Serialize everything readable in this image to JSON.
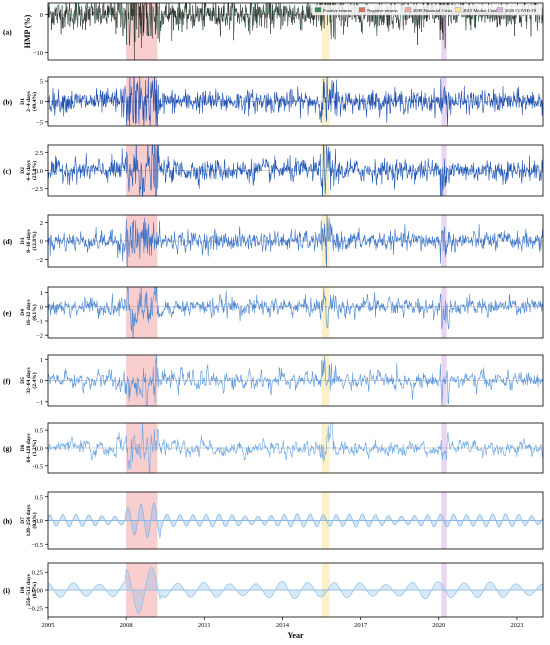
{
  "chart_data": {
    "type": "line",
    "xlabel": "Year",
    "x_tick_labels": [
      "2005",
      "2008",
      "2011",
      "2014",
      "2017",
      "2020",
      "2023"
    ],
    "xlim": [
      2005,
      2024
    ],
    "legend": {
      "placement": "top-right",
      "entries": [
        {
          "label": "Positive returns",
          "color": "#2e8b57"
        },
        {
          "label": "Negative returns",
          "color": "#e0705a"
        },
        {
          "label": "2008 Financial Crisis",
          "color": "#f4a6a6"
        },
        {
          "label": "2015 Market Crash",
          "color": "#f7e39a"
        },
        {
          "label": "2020 COVID-19",
          "color": "#d9b3e6"
        }
      ]
    },
    "shaded_periods": [
      {
        "label": "2008 Financial Crisis",
        "start": 2008.0,
        "end": 2009.2,
        "color": "#f4a6a6"
      },
      {
        "label": "2015 Market Crash",
        "start": 2015.5,
        "end": 2015.8,
        "color": "#f7e39a"
      },
      {
        "label": "2020 COVID-19",
        "start": 2020.1,
        "end": 2020.3,
        "color": "#d9b3e6"
      }
    ],
    "panels": [
      {
        "letter": "(a)",
        "ylabel_lines": [
          "HMP (%)"
        ],
        "yticks": [
          "0",
          "−10"
        ],
        "ylim": [
          -12,
          3
        ],
        "style": "raw",
        "color": "#111111",
        "amplitude": 2.0
      },
      {
        "letter": "(b)",
        "ylabel_lines": [
          "D1",
          "2–4 days",
          "(49.4%)"
        ],
        "yticks": [
          "5",
          "0",
          "−5"
        ],
        "ylim": [
          -6,
          6
        ],
        "style": "band",
        "color": "#1f4fb0",
        "amplitude": 1.4
      },
      {
        "letter": "(c)",
        "ylabel_lines": [
          "D2",
          "4–8 days",
          "(25.8%)"
        ],
        "yticks": [
          "2.5",
          "0.0",
          "−2.5"
        ],
        "ylim": [
          -3.5,
          3.5
        ],
        "style": "band",
        "color": "#2058b8",
        "amplitude": 0.9
      },
      {
        "letter": "(d)",
        "ylabel_lines": [
          "D3",
          "8–16 days",
          "(12.8%)"
        ],
        "yticks": [
          "2",
          "0",
          "−2"
        ],
        "ylim": [
          -2.8,
          2.8
        ],
        "style": "band",
        "color": "#3a74c8",
        "amplitude": 0.7
      },
      {
        "letter": "(e)",
        "ylabel_lines": [
          "D4",
          "16–32 days",
          "(6.1%)"
        ],
        "yticks": [
          "1",
          "0",
          "−1",
          "−2"
        ],
        "ylim": [
          -2.2,
          1.4
        ],
        "style": "band",
        "color": "#4d87d2",
        "amplitude": 0.45
      },
      {
        "letter": "(f)",
        "ylabel_lines": [
          "D5",
          "32–64 days",
          "(2.4%)"
        ],
        "yticks": [
          "1",
          "0",
          "−1"
        ],
        "ylim": [
          -1.2,
          1.2
        ],
        "style": "band",
        "color": "#5b96dc",
        "amplitude": 0.35
      },
      {
        "letter": "(g)",
        "ylabel_lines": [
          "D6",
          "64–128 days",
          "(1.2%)"
        ],
        "yticks": [
          "0.5",
          "0.0",
          "−0.5"
        ],
        "ylim": [
          -0.7,
          0.7
        ],
        "style": "band",
        "color": "#6aa6e2",
        "amplitude": 0.25
      },
      {
        "letter": "(h)",
        "ylabel_lines": [
          "D7",
          "128–256 days",
          "(0.9%)"
        ],
        "yticks": [
          "0.5",
          "0.0",
          "−0.5"
        ],
        "ylim": [
          -0.6,
          0.6
        ],
        "style": "fill",
        "color": "#7fb5e8",
        "amplitude": 0.12
      },
      {
        "letter": "(i)",
        "ylabel_lines": [
          "D8",
          "256–512 days",
          "(0.5%)"
        ],
        "yticks": [
          "0.25",
          "0.00",
          "−0.25"
        ],
        "ylim": [
          -0.38,
          0.38
        ],
        "style": "fill",
        "color": "#8fc1ec",
        "amplitude": 0.1
      }
    ]
  }
}
